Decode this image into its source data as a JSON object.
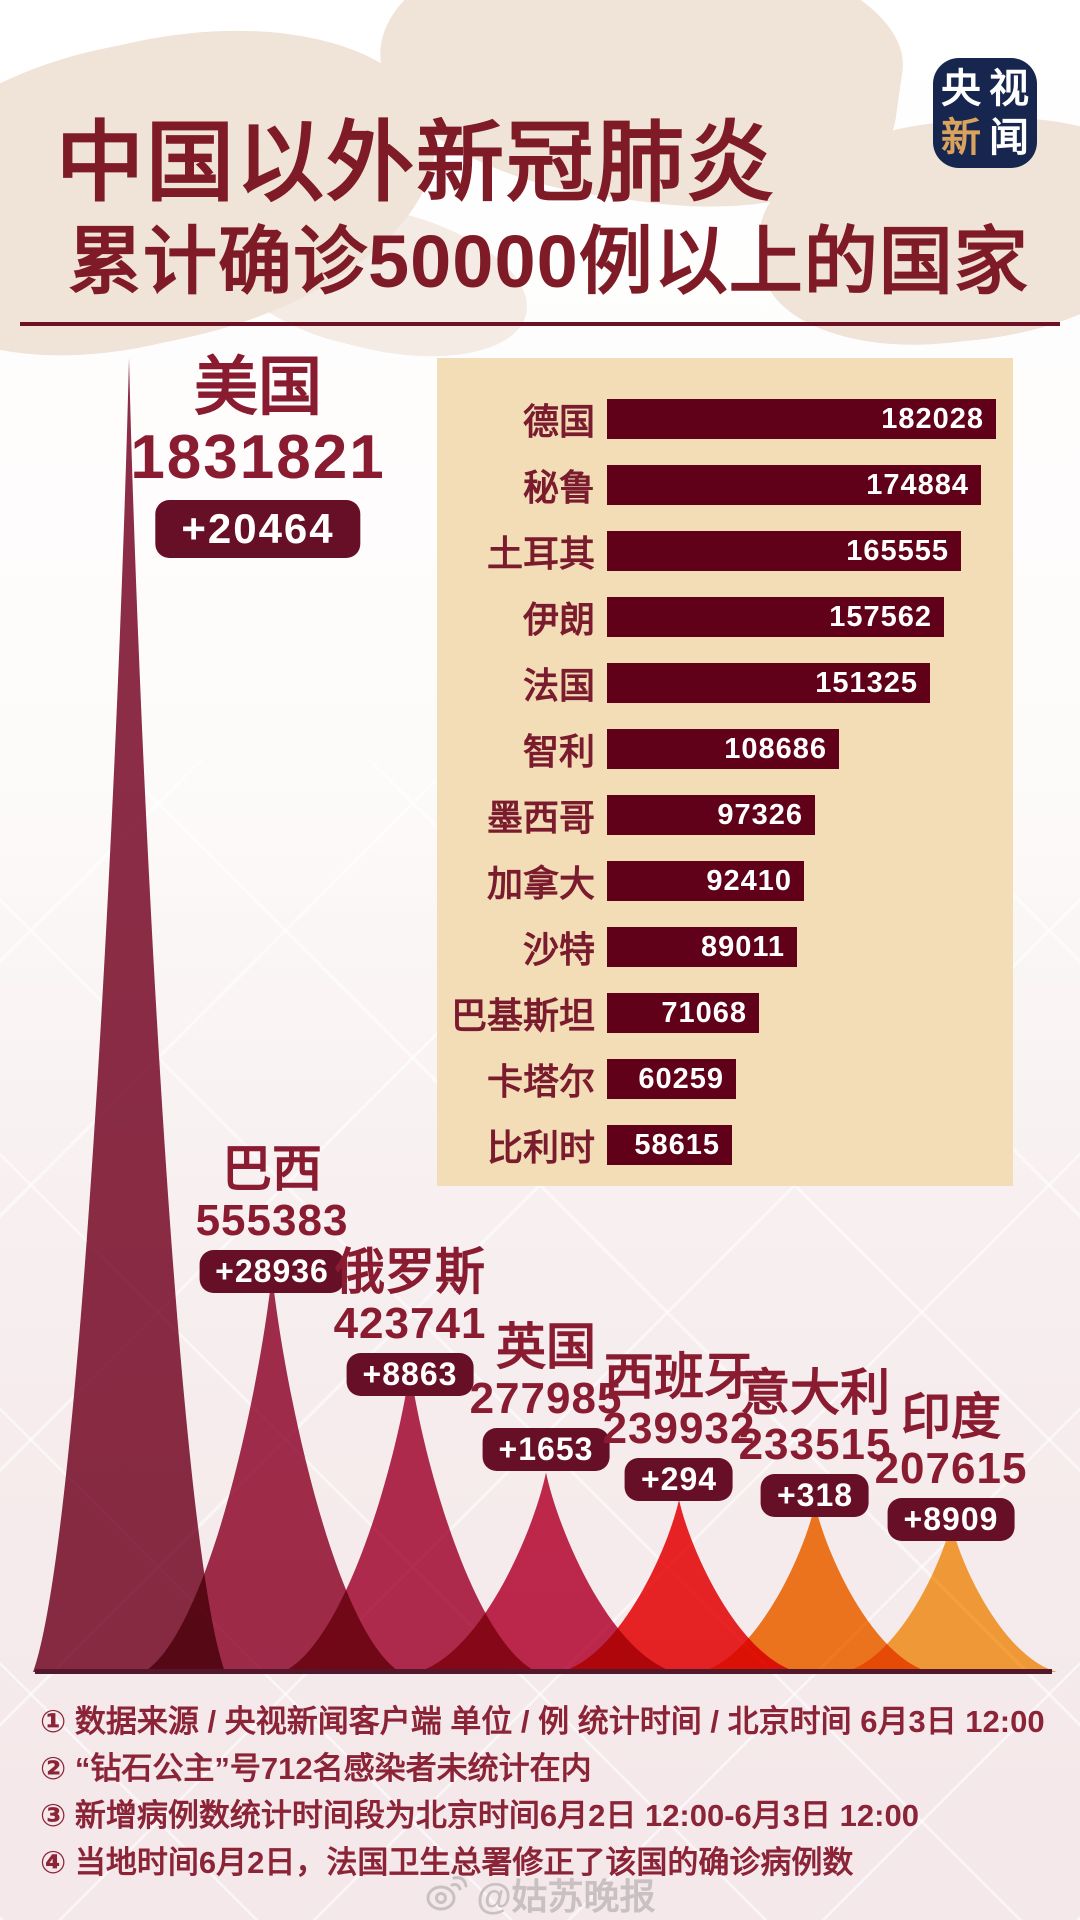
{
  "logo": {
    "chars": [
      "央",
      "视",
      "新",
      "闻"
    ]
  },
  "title": {
    "line1": "中国以外新冠肺炎",
    "line2": "累计确诊50000例以上的国家"
  },
  "chart_data": [
    {
      "type": "area",
      "name": "peak-chart",
      "title": "中国以外新冠肺炎累计确诊50000例以上的国家（山峰图）",
      "unit": "例",
      "ylim": [
        0,
        1831821
      ],
      "series": [
        {
          "country": "美国",
          "total": 1831821,
          "new": 20464,
          "color": "#8c2d47"
        },
        {
          "country": "巴西",
          "total": 555383,
          "new": 28936,
          "color": "#a42e4e"
        },
        {
          "country": "俄罗斯",
          "total": 423741,
          "new": 8863,
          "color": "#b52d52"
        },
        {
          "country": "英国",
          "total": 277985,
          "new": 1653,
          "color": "#c32a50"
        },
        {
          "country": "西班牙",
          "total": 239932,
          "new": 294,
          "color": "#ef2526"
        },
        {
          "country": "意大利",
          "total": 233515,
          "new": 318,
          "color": "#f57d1f"
        },
        {
          "country": "印度",
          "total": 207615,
          "new": 8909,
          "color": "#f9a63c"
        }
      ]
    },
    {
      "type": "bar",
      "name": "ranking-bars",
      "unit": "例",
      "xlim": [
        0,
        182028
      ],
      "categories": [
        "德国",
        "秘鲁",
        "土耳其",
        "伊朗",
        "法国",
        "智利",
        "墨西哥",
        "加拿大",
        "沙特",
        "巴基斯坦",
        "卡塔尔",
        "比利时"
      ],
      "values": [
        182028,
        174884,
        165555,
        157562,
        151325,
        108686,
        97326,
        92410,
        89011,
        71068,
        60259,
        58615
      ]
    }
  ],
  "notes": [
    "① 数据来源 / 央视新闻客户端  单位 / 例  统计时间 / 北京时间 6月3日 12:00",
    "② “钻石公主”号712名感染者未统计在内",
    "③ 新增病例数统计时间段为北京时间6月2日 12:00-6月3日 12:00",
    "④ 当地时间6月2日，法国卫生总署修正了该国的确诊病例数"
  ],
  "watermark": {
    "handle": "@姑苏晚报"
  },
  "colors": {
    "title": "#7e1b26",
    "divider": "#6d1124",
    "label_text": "#8a1c31",
    "bar_label_text": "#7a1b2e",
    "badge_bg": "#670f26",
    "badge_text": "#ffffff",
    "bar_color": "#600019",
    "panel_bg": "#f3ddb7",
    "baseline": "#54182d",
    "note_text": "#8c2438",
    "logo_bg": "#17264e",
    "logo_accent": "#d9a35f"
  }
}
